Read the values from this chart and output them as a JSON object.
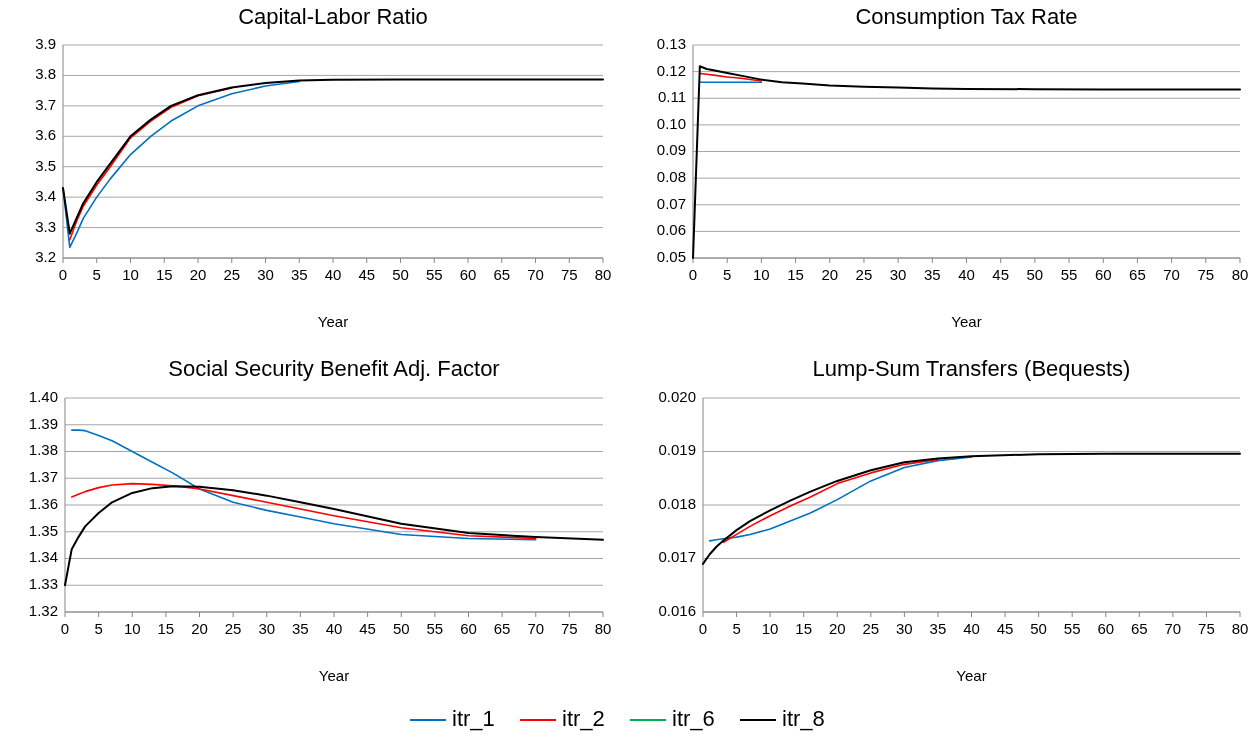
{
  "chart_data": [
    {
      "type": "line",
      "title": "Capital-Labor Ratio",
      "xlabel": "Year",
      "xlim": [
        0,
        80
      ],
      "xticks": [
        0,
        5,
        10,
        15,
        20,
        25,
        30,
        35,
        40,
        45,
        50,
        55,
        60,
        65,
        70,
        75,
        80
      ],
      "ylim": [
        3.2,
        3.9
      ],
      "yticks": [
        {
          "value": 3.2,
          "label": "3.2"
        },
        {
          "value": 3.3,
          "label": "3.3"
        },
        {
          "value": 3.4,
          "label": "3.4"
        },
        {
          "value": 3.5,
          "label": "3.5"
        },
        {
          "value": 3.6,
          "label": "3.6"
        },
        {
          "value": 3.7,
          "label": "3.7"
        },
        {
          "value": 3.8,
          "label": "3.8"
        },
        {
          "value": 3.9,
          "label": "3.9"
        }
      ],
      "grid": "y",
      "legend": "bottom",
      "marker": "none",
      "line_style": "solid",
      "x": [
        0,
        1,
        2,
        3,
        5,
        7,
        10,
        13,
        16,
        20,
        25,
        30,
        35,
        40,
        50,
        60,
        70,
        80
      ],
      "series": [
        {
          "name": "itr_1",
          "color": "#0070c0",
          "values": [
            3.43,
            3.235,
            3.28,
            3.33,
            3.4,
            3.46,
            3.54,
            3.6,
            3.65,
            3.7,
            3.74,
            3.765,
            3.78,
            null,
            null,
            null,
            null,
            null
          ]
        },
        {
          "name": "itr_2",
          "color": "#ff0000",
          "values": [
            null,
            3.26,
            3.32,
            3.37,
            3.44,
            3.5,
            3.595,
            3.65,
            3.695,
            3.733,
            3.759,
            null,
            null,
            null,
            null,
            null,
            null,
            null
          ]
        },
        {
          "name": "itr_6",
          "color": "#00b050",
          "values": [
            null,
            null,
            null,
            null,
            null,
            null,
            null,
            null,
            null,
            null,
            null,
            null,
            null,
            null,
            null,
            null,
            null,
            null
          ]
        },
        {
          "name": "itr_8",
          "color": "#000000",
          "values": [
            3.43,
            3.28,
            3.33,
            3.38,
            3.45,
            3.51,
            3.6,
            3.655,
            3.7,
            3.735,
            3.76,
            3.775,
            3.783,
            3.786,
            3.787,
            3.787,
            3.787,
            3.787
          ]
        }
      ]
    },
    {
      "type": "line",
      "title": "Consumption Tax Rate",
      "xlabel": "Year",
      "xlim": [
        0,
        80
      ],
      "xticks": [
        0,
        5,
        10,
        15,
        20,
        25,
        30,
        35,
        40,
        45,
        50,
        55,
        60,
        65,
        70,
        75,
        80
      ],
      "ylim": [
        0.05,
        0.13
      ],
      "yticks": [
        {
          "value": 0.05,
          "label": "0.05"
        },
        {
          "value": 0.06,
          "label": "0.06"
        },
        {
          "value": 0.07,
          "label": "0.07"
        },
        {
          "value": 0.08,
          "label": "0.08"
        },
        {
          "value": 0.09,
          "label": "0.09"
        },
        {
          "value": 0.1,
          "label": "0.10"
        },
        {
          "value": 0.11,
          "label": "0.11"
        },
        {
          "value": 0.12,
          "label": "0.12"
        },
        {
          "value": 0.13,
          "label": "0.13"
        }
      ],
      "grid": "y",
      "marker": "none",
      "line_style": "solid",
      "x": [
        0,
        1,
        2,
        3,
        5,
        7,
        10,
        13,
        16,
        20,
        25,
        30,
        35,
        40,
        50,
        60,
        70,
        80
      ],
      "series": [
        {
          "color": "#0070c0",
          "values": [
            null,
            0.116,
            0.116,
            0.116,
            0.116,
            0.116,
            0.116,
            null,
            null,
            null,
            null,
            null,
            null,
            null,
            null,
            null,
            null,
            null
          ]
        },
        {
          "color": "#ff0000",
          "values": [
            null,
            0.1193,
            0.119,
            0.1187,
            0.118,
            0.1175,
            0.1165,
            null,
            null,
            null,
            null,
            null,
            null,
            null,
            null,
            null,
            null,
            null
          ]
        },
        {
          "color": "#00b050",
          "values": [
            null,
            null,
            null,
            null,
            null,
            null,
            null,
            null,
            null,
            null,
            null,
            null,
            null,
            null,
            null,
            null,
            null,
            null
          ]
        },
        {
          "color": "#000000",
          "values": [
            0.05,
            0.122,
            0.121,
            0.1205,
            0.1195,
            0.1185,
            0.117,
            0.116,
            0.1155,
            0.1148,
            0.1143,
            0.114,
            0.1137,
            0.1135,
            0.1134,
            0.1133,
            0.1133,
            0.1133
          ]
        }
      ]
    },
    {
      "type": "line",
      "title": "Social Security Benefit Adj. Factor",
      "xlabel": "Year",
      "xlim": [
        0,
        80
      ],
      "xticks": [
        0,
        5,
        10,
        15,
        20,
        25,
        30,
        35,
        40,
        45,
        50,
        55,
        60,
        65,
        70,
        75,
        80
      ],
      "ylim": [
        1.32,
        1.4
      ],
      "yticks": [
        {
          "value": 1.32,
          "label": "1.32"
        },
        {
          "value": 1.33,
          "label": "1.33"
        },
        {
          "value": 1.34,
          "label": "1.34"
        },
        {
          "value": 1.35,
          "label": "1.35"
        },
        {
          "value": 1.36,
          "label": "1.36"
        },
        {
          "value": 1.37,
          "label": "1.37"
        },
        {
          "value": 1.38,
          "label": "1.38"
        },
        {
          "value": 1.39,
          "label": "1.39"
        },
        {
          "value": 1.4,
          "label": "1.40"
        }
      ],
      "grid": "y",
      "marker": "none",
      "line_style": "solid",
      "x": [
        0,
        1,
        2,
        3,
        5,
        7,
        10,
        13,
        16,
        20,
        25,
        30,
        35,
        40,
        50,
        60,
        70,
        80
      ],
      "series": [
        {
          "color": "#0070c0",
          "values": [
            null,
            1.388,
            1.388,
            1.3878,
            1.386,
            1.384,
            1.38,
            1.376,
            1.372,
            1.366,
            1.361,
            1.358,
            1.3555,
            1.353,
            1.349,
            1.3475,
            1.347,
            null
          ]
        },
        {
          "color": "#ff0000",
          "values": [
            null,
            1.363,
            1.364,
            1.365,
            1.3665,
            1.3675,
            1.368,
            1.3677,
            1.3672,
            1.366,
            1.3635,
            1.361,
            1.3585,
            1.356,
            1.3515,
            1.3485,
            1.3475,
            null
          ]
        },
        {
          "color": "#00b050",
          "values": [
            null,
            null,
            null,
            null,
            null,
            null,
            null,
            null,
            null,
            null,
            null,
            null,
            null,
            null,
            null,
            null,
            null,
            null
          ]
        },
        {
          "color": "#000000",
          "values": [
            1.33,
            1.3435,
            1.348,
            1.352,
            1.357,
            1.361,
            1.3645,
            1.3663,
            1.367,
            1.3668,
            1.3655,
            1.3635,
            1.361,
            1.3585,
            1.353,
            1.3495,
            1.348,
            1.347
          ]
        }
      ]
    },
    {
      "type": "line",
      "title": "Lump-Sum Transfers (Bequests)",
      "xlabel": "Year",
      "xlim": [
        0,
        80
      ],
      "xticks": [
        0,
        5,
        10,
        15,
        20,
        25,
        30,
        35,
        40,
        45,
        50,
        55,
        60,
        65,
        70,
        75,
        80
      ],
      "ylim": [
        0.016,
        0.02
      ],
      "yticks": [
        {
          "value": 0.016,
          "label": "0.016"
        },
        {
          "value": 0.017,
          "label": "0.017"
        },
        {
          "value": 0.018,
          "label": "0.018"
        },
        {
          "value": 0.019,
          "label": "0.019"
        },
        {
          "value": 0.02,
          "label": "0.020"
        }
      ],
      "grid": "y",
      "marker": "none",
      "line_style": "solid",
      "x": [
        0,
        1,
        2,
        3,
        5,
        7,
        10,
        13,
        16,
        20,
        25,
        30,
        35,
        40,
        50,
        60,
        70,
        80
      ],
      "series": [
        {
          "color": "#0070c0",
          "values": [
            null,
            0.01733,
            0.01735,
            0.01737,
            0.0174,
            0.01745,
            0.01755,
            0.0177,
            0.01785,
            0.0181,
            0.01845,
            0.0187,
            0.01883,
            0.0189,
            null,
            null,
            null,
            null
          ]
        },
        {
          "color": "#ff0000",
          "values": [
            null,
            null,
            null,
            0.0173,
            0.01745,
            0.0176,
            0.0178,
            0.01798,
            0.01815,
            0.0184,
            0.0186,
            0.01876,
            0.01885,
            null,
            null,
            null,
            null,
            null
          ]
        },
        {
          "color": "#00b050",
          "values": [
            null,
            null,
            null,
            null,
            null,
            null,
            null,
            null,
            null,
            null,
            null,
            null,
            null,
            null,
            null,
            null,
            null,
            null
          ]
        },
        {
          "color": "#000000",
          "values": [
            0.0169,
            0.01708,
            0.01722,
            0.01733,
            0.01753,
            0.0177,
            0.0179,
            0.01808,
            0.01825,
            0.01845,
            0.01865,
            0.0188,
            0.01887,
            0.01891,
            0.01895,
            0.01896,
            0.01896,
            0.01896
          ]
        }
      ]
    }
  ]
}
